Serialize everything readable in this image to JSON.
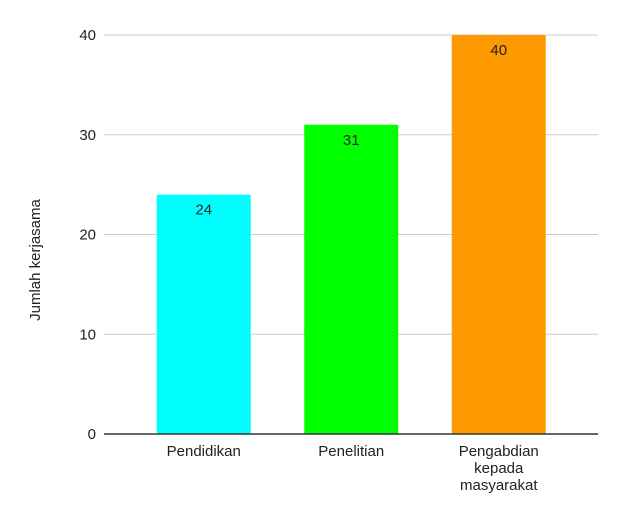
{
  "chart_data": {
    "type": "bar",
    "categories": [
      [
        "Pendidikan"
      ],
      [
        "Penelitian"
      ],
      [
        "Pengabdian",
        "kepada",
        "masyarakat"
      ]
    ],
    "values": [
      24,
      31,
      40
    ],
    "data_labels": [
      "24",
      "31",
      "40"
    ],
    "colors": [
      "#00ffff",
      "#00ff00",
      "#ff9900"
    ],
    "title": "",
    "xlabel": "",
    "ylabel": "Jumlah kerjasama",
    "ylim": [
      0,
      40
    ],
    "yticks": [
      0,
      10,
      20,
      30,
      40
    ],
    "ytick_labels": [
      "0",
      "10",
      "20",
      "30",
      "40"
    ],
    "grid": true,
    "legend": "none"
  }
}
